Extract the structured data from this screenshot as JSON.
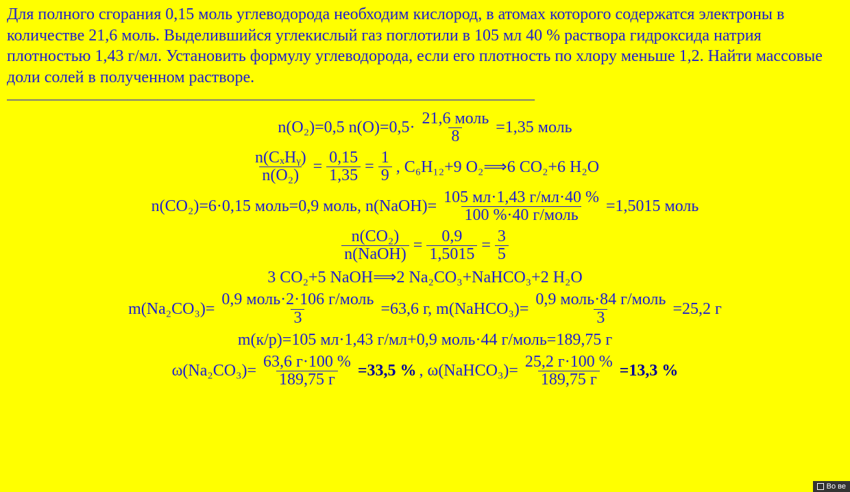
{
  "problem_text": "Для полного сгорания 0,15 моль углеводорода необходим кислород, в атомах которого содержатся электроны в количестве 21,6 моль. Выделившийся углекислый газ поглотили в 105 мл 40 % раствора гидроксида натрия плотностью 1,43 г/мл. Установить формулу углеводорода, если его плотность по хлору меньше 1,2. Найти массовые доли солей в полученном растворе.",
  "divider": "———————————————————————————————————",
  "equations": {
    "eq1": {
      "prefix": "n(O₂)=0,5 n(O)=0,5·",
      "num": "21,6 моль",
      "den": "8",
      "suffix": "=1,35 моль"
    },
    "eq2": {
      "frac1_num": "n(CₓHᵧ)",
      "frac1_den": "n(O₂)",
      "mid": "=",
      "frac2_num": "0,15",
      "frac2_den": "1,35",
      "mid2": "=",
      "frac3_num": "1",
      "frac3_den": "9",
      "tail": ",   C₆H₁₂+9 O₂⟹6 CO₂+6 H₂O"
    },
    "eq3": {
      "left": "n(CO₂)=6·0,15 моль=0,9 моль,   n(NaOH)=",
      "num": "105 мл·1,43 г/мл·40 %",
      "den": "100 %·40 г/моль",
      "suffix": "=1,5015 моль"
    },
    "eq4": {
      "frac1_num": "n(CO₂)",
      "frac1_den": "n(NaOH)",
      "mid": "=",
      "frac2_num": "0,9",
      "frac2_den": "1,5015",
      "mid2": "=",
      "frac3_num": "3",
      "frac3_den": "5"
    },
    "eq5": "3 CO₂+5 NaOH⟹2 Na₂CO₃+NaHCO₃+2 H₂O",
    "eq6": {
      "left": "m(Na₂CO₃)=",
      "f1_num": "0,9 моль·2·106 г/моль",
      "f1_den": "3",
      "mid": "=63,6 г,   m(NaHCO₃)=",
      "f2_num": "0,9 моль·84 г/моль",
      "f2_den": "3",
      "suffix": "=25,2 г"
    },
    "eq7": "m(к/р)=105 мл·1,43 г/мл+0,9 моль·44 г/моль=189,75 г",
    "eq8": {
      "left": "ω(Na₂CO₃)=",
      "f1_num": "63,6 г·100 %",
      "f1_den": "189,75 г",
      "ans1": "=33,5 %",
      "mid": ",   ω(NaHCO₃)=",
      "f2_num": "25,2 г·100 %",
      "f2_den": "189,75 г",
      "ans2": "=13,3 %"
    }
  },
  "corner_label": "Во ве"
}
